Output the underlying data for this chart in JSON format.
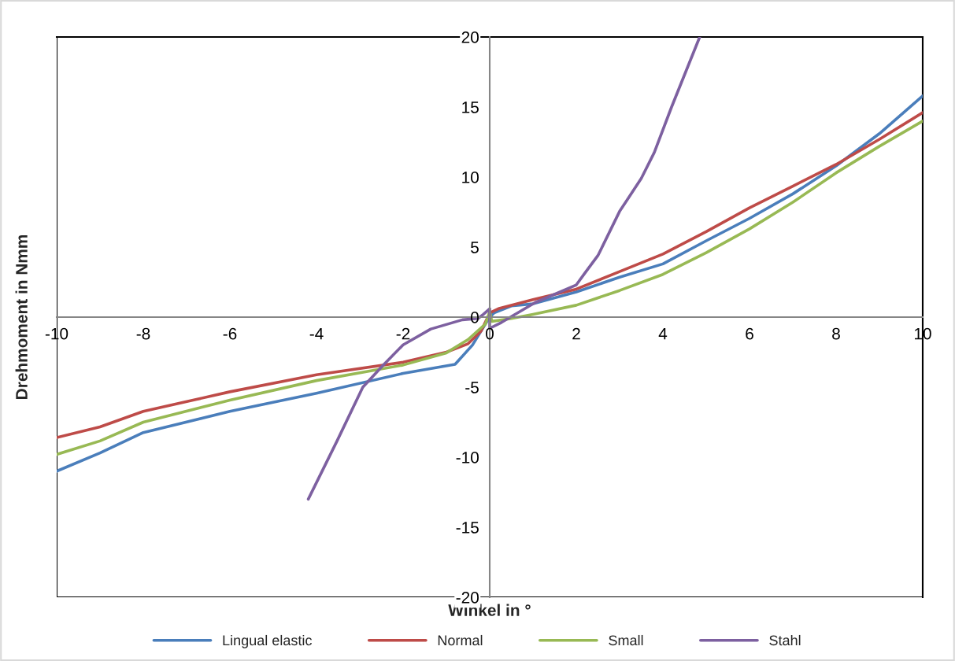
{
  "chart_data": {
    "type": "line",
    "xlabel": "Winkel in °",
    "ylabel": "Drehmoment in Nmm",
    "xlim": [
      -10,
      10
    ],
    "ylim": [
      -20,
      20
    ],
    "xticks": [
      -10,
      -8,
      -6,
      -4,
      -2,
      0,
      2,
      4,
      6,
      8,
      10
    ],
    "yticks": [
      -20,
      -15,
      -10,
      -5,
      0,
      5,
      10,
      15,
      20
    ],
    "grid": false,
    "legend": "bottom",
    "marker": "none",
    "line_style": "solid",
    "series": [
      {
        "name": "Lingual elastic",
        "color": "#4a7ebb",
        "x": [
          -10,
          -9,
          -8,
          -6,
          -4,
          -2,
          -0.8,
          -0.4,
          -0.1,
          0,
          0.1,
          0.5,
          1,
          2,
          3,
          4,
          5,
          6,
          7,
          8,
          9,
          10
        ],
        "values": [
          -11.0,
          -9.7,
          -8.24,
          -6.73,
          -5.43,
          -4.02,
          -3.37,
          -2.0,
          -0.5,
          0,
          0.3,
          0.8,
          0.95,
          1.8,
          2.85,
          3.8,
          5.45,
          7.05,
          8.8,
          10.8,
          13.1,
          15.8
        ]
      },
      {
        "name": "Normal",
        "color": "#be4b48",
        "x": [
          -10,
          -9,
          -8,
          -6,
          -4,
          -2,
          -1,
          -0.5,
          -0.2,
          0,
          0.2,
          1,
          2,
          3,
          4,
          5,
          6,
          7,
          8,
          9,
          10
        ],
        "values": [
          -8.6,
          -7.84,
          -6.73,
          -5.33,
          -4.12,
          -3.22,
          -2.5,
          -1.9,
          -1.0,
          0.3,
          0.6,
          1.25,
          2.0,
          3.25,
          4.5,
          6.1,
          7.8,
          9.35,
          10.9,
          12.7,
          14.6
        ]
      },
      {
        "name": "Small",
        "color": "#98b954",
        "x": [
          -10,
          -9,
          -8,
          -6,
          -4,
          -2,
          -1,
          -0.5,
          -0.1,
          0,
          0.05,
          0.5,
          1,
          2,
          3,
          4,
          5,
          6,
          7,
          8,
          9,
          10
        ],
        "values": [
          -9.8,
          -8.84,
          -7.5,
          -5.93,
          -4.53,
          -3.42,
          -2.55,
          -1.6,
          -0.5,
          0.4,
          -0.3,
          -0.1,
          0.2,
          0.85,
          1.9,
          3.05,
          4.6,
          6.3,
          8.2,
          10.3,
          12.2,
          14.0
        ]
      },
      {
        "name": "Stahl",
        "color": "#7d60a0",
        "x": [
          -4.19,
          -3.53,
          -2.93,
          -2.45,
          -2.0,
          -1.36,
          -0.63,
          -0.27,
          -0.15,
          0,
          0,
          0.27,
          1.05,
          2,
          2.2,
          2.5,
          3,
          3.5,
          3.8,
          4.2,
          4.85
        ],
        "values": [
          -13.0,
          -8.87,
          -5.0,
          -3.4,
          -1.98,
          -0.85,
          -0.19,
          -0.1,
          0.19,
          0.6,
          -0.8,
          -0.38,
          1.04,
          2.3,
          3.15,
          4.4,
          7.55,
          9.9,
          11.75,
          15.0,
          20.0
        ]
      }
    ]
  }
}
